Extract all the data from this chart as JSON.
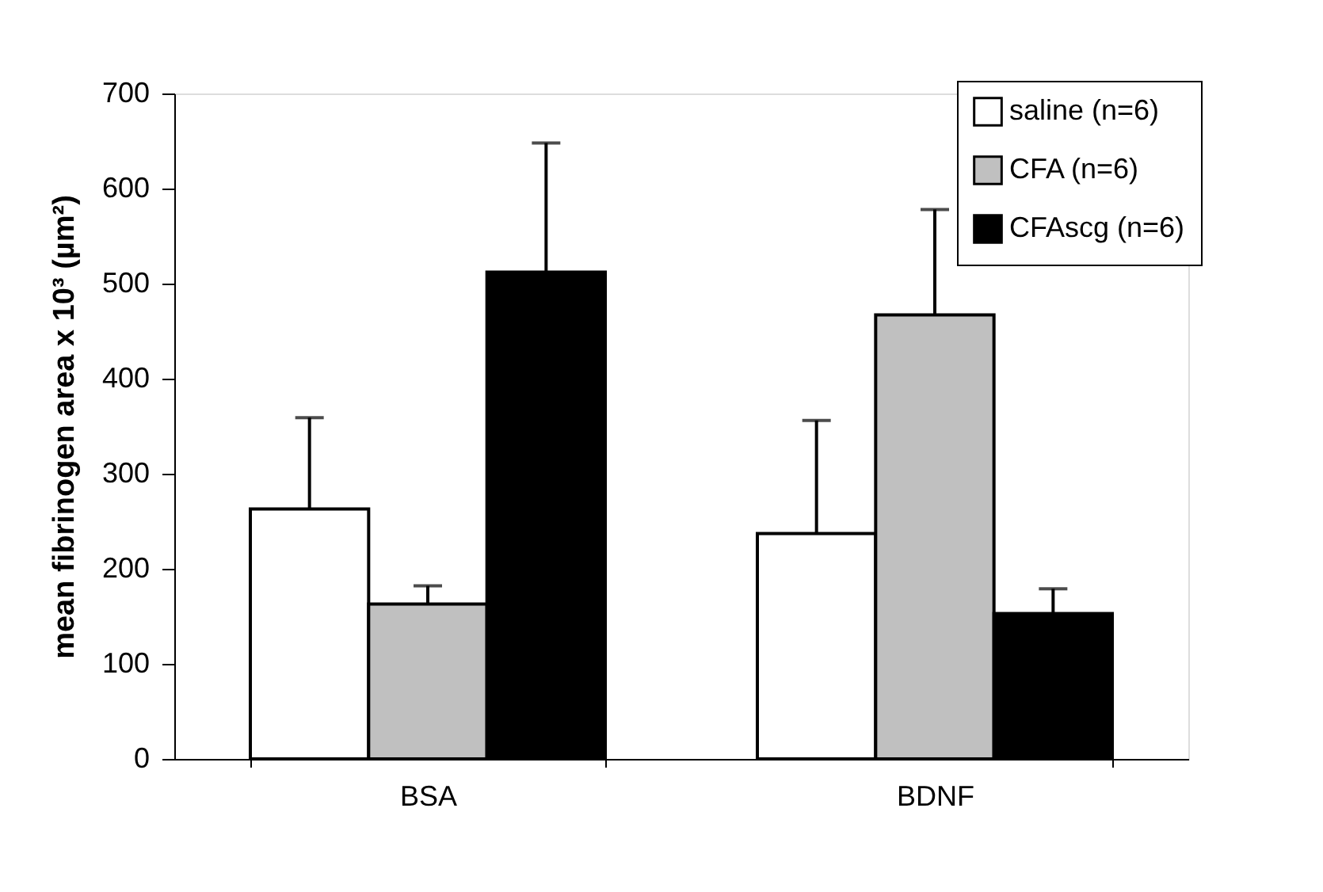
{
  "chart_data": {
    "type": "bar",
    "ylabel": "mean fibrinogen area x 10³ (µm²)",
    "categories": [
      "BSA",
      "BDNF"
    ],
    "series": [
      {
        "name": "saline (n=6)",
        "color": "#ffffff",
        "values": [
          263,
          237
        ],
        "errors": [
          [
            263,
            359
          ],
          [
            237,
            356
          ]
        ]
      },
      {
        "name": "CFA (n=6)",
        "color": "#c0c0c0",
        "values": [
          163,
          467
        ],
        "errors": [
          [
            163,
            182
          ],
          [
            467,
            578
          ]
        ]
      },
      {
        "name": "CFAscg (n=6)",
        "color": "#000000",
        "values": [
          512,
          153
        ],
        "errors": [
          [
            512,
            648
          ],
          [
            153,
            179
          ]
        ]
      }
    ],
    "ylim": [
      0,
      700
    ],
    "yticks": [
      0,
      100,
      200,
      300,
      400,
      500,
      600,
      700
    ],
    "grid": false,
    "legend": "top right"
  }
}
